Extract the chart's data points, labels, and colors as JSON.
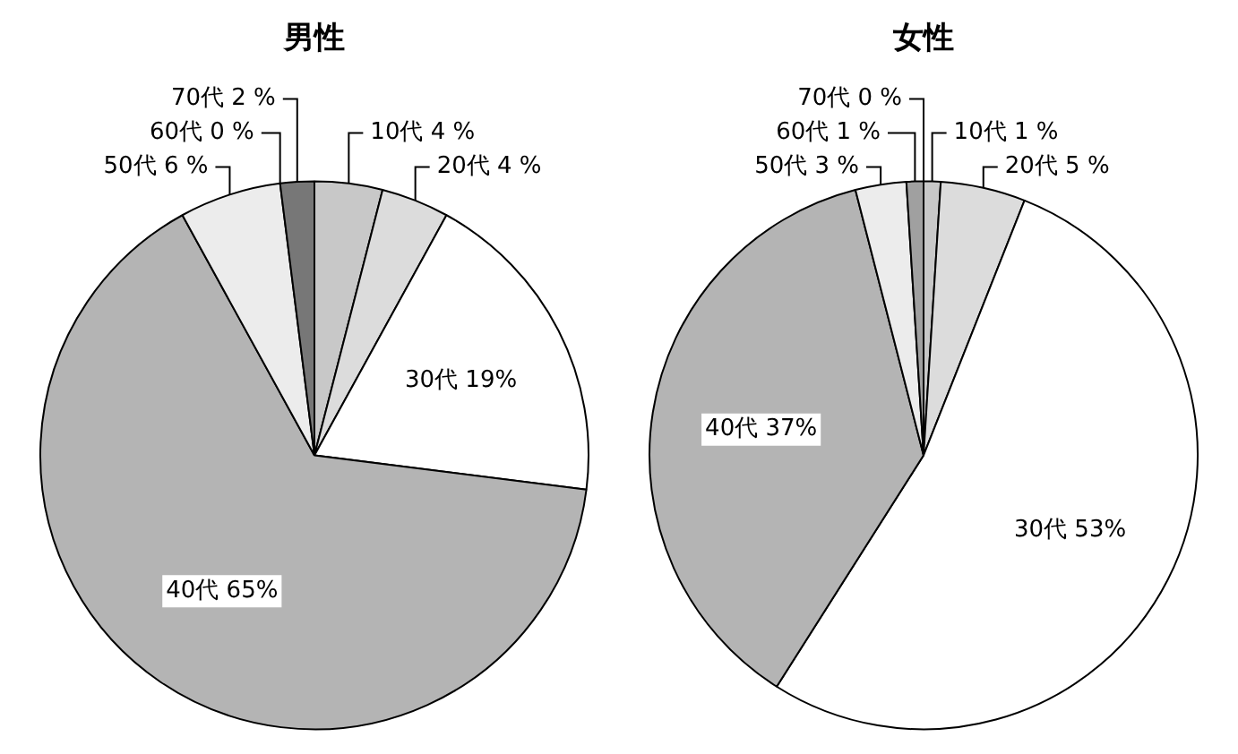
{
  "chart_data": [
    {
      "type": "pie",
      "title": "男性",
      "categories": [
        "10代",
        "20代",
        "30代",
        "40代",
        "50代",
        "60代",
        "70代"
      ],
      "values": [
        4,
        4,
        19,
        65,
        6,
        0,
        2
      ],
      "colors": [
        "#c8c8c8",
        "#dcdcdc",
        "#ffffff",
        "#b4b4b4",
        "#ececec",
        "#a0a0a0",
        "#777777"
      ],
      "value_labels": [
        "4 %",
        "4 %",
        "19%",
        "65%",
        "6 %",
        "0 %",
        "2 %"
      ]
    },
    {
      "type": "pie",
      "title": "女性",
      "categories": [
        "10代",
        "20代",
        "30代",
        "40代",
        "50代",
        "60代",
        "70代"
      ],
      "values": [
        1,
        5,
        53,
        37,
        3,
        1,
        0
      ],
      "colors": [
        "#c8c8c8",
        "#dcdcdc",
        "#ffffff",
        "#b4b4b4",
        "#ececec",
        "#a0a0a0",
        "#777777"
      ],
      "value_labels": [
        "1 %",
        "5 %",
        "53%",
        "37%",
        "3 %",
        "1 %",
        "0 %"
      ]
    }
  ]
}
